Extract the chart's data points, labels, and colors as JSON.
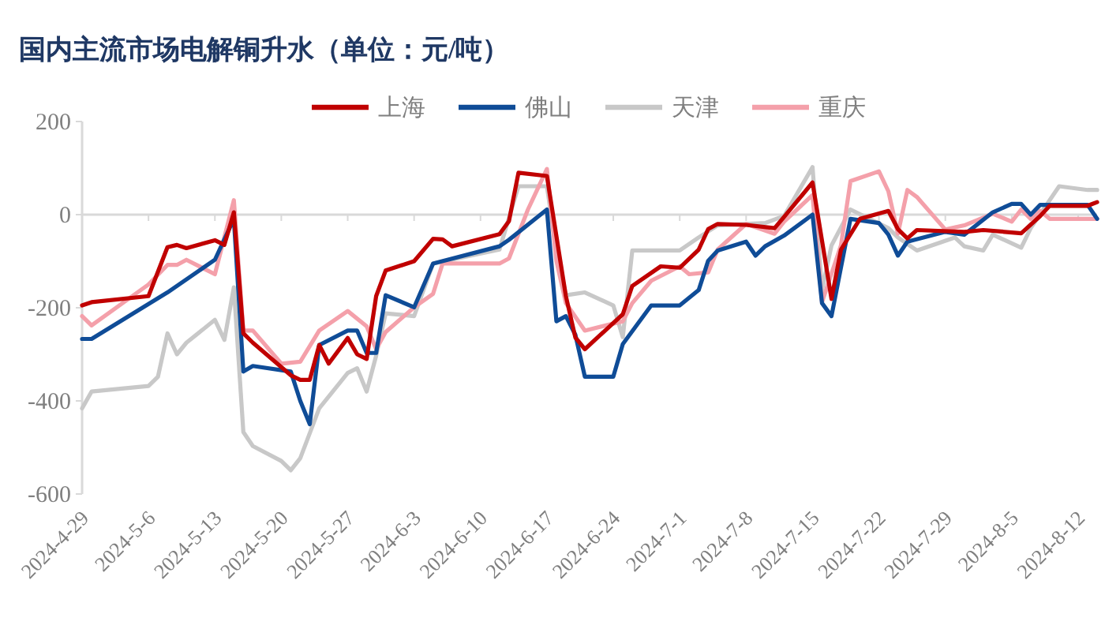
{
  "chart_data": {
    "type": "line",
    "title": "国内主流市场电解铜升水（单位：元/吨）",
    "legend": "top",
    "xlim": [
      "2024-04-29",
      "2024-08-14"
    ],
    "ylim": [
      -600,
      200
    ],
    "yticks": [
      -600,
      -400,
      -200,
      0,
      200
    ],
    "xticks": [
      {
        "value": "2024-04-29",
        "label": "2024-4-29"
      },
      {
        "value": "2024-05-06",
        "label": "2024-5-6"
      },
      {
        "value": "2024-05-13",
        "label": "2024-5-13"
      },
      {
        "value": "2024-05-20",
        "label": "2024-5-20"
      },
      {
        "value": "2024-05-27",
        "label": "2024-5-27"
      },
      {
        "value": "2024-06-03",
        "label": "2024-6-3"
      },
      {
        "value": "2024-06-10",
        "label": "2024-6-10"
      },
      {
        "value": "2024-06-17",
        "label": "2024-6-17"
      },
      {
        "value": "2024-06-24",
        "label": "2024-6-24"
      },
      {
        "value": "2024-07-01",
        "label": "2024-7-1"
      },
      {
        "value": "2024-07-08",
        "label": "2024-7-8"
      },
      {
        "value": "2024-07-15",
        "label": "2024-7-15"
      },
      {
        "value": "2024-07-22",
        "label": "2024-7-22"
      },
      {
        "value": "2024-07-29",
        "label": "2024-7-29"
      },
      {
        "value": "2024-08-05",
        "label": "2024-8-5"
      },
      {
        "value": "2024-08-12",
        "label": "2024-8-12"
      }
    ],
    "series": [
      {
        "name": "天津",
        "color": "#c8c8c8",
        "x": [
          "2024-04-29",
          "2024-04-30",
          "2024-05-06",
          "2024-05-07",
          "2024-05-08",
          "2024-05-09",
          "2024-05-10",
          "2024-05-13",
          "2024-05-14",
          "2024-05-15",
          "2024-05-16",
          "2024-05-17",
          "2024-05-20",
          "2024-05-21",
          "2024-05-22",
          "2024-05-24",
          "2024-05-27",
          "2024-05-28",
          "2024-05-29",
          "2024-05-30",
          "2024-05-31",
          "2024-06-03",
          "2024-06-05",
          "2024-06-12",
          "2024-06-14",
          "2024-06-17",
          "2024-06-18",
          "2024-06-19",
          "2024-06-21",
          "2024-06-24",
          "2024-06-25",
          "2024-06-26",
          "2024-07-01",
          "2024-07-03",
          "2024-07-05",
          "2024-07-10",
          "2024-07-12",
          "2024-07-15",
          "2024-07-16",
          "2024-07-17",
          "2024-07-19",
          "2024-07-23",
          "2024-07-24",
          "2024-07-26",
          "2024-07-30",
          "2024-07-31",
          "2024-08-02",
          "2024-08-03",
          "2024-08-06",
          "2024-08-07",
          "2024-08-10",
          "2024-08-13",
          "2024-08-14"
        ],
        "values": [
          -416,
          -380,
          -368,
          -348,
          -255,
          -300,
          -275,
          -226,
          -269,
          -156,
          -467,
          -497,
          -529,
          -549,
          -523,
          -416,
          -340,
          -330,
          -380,
          -303,
          -212,
          -218,
          -105,
          -75,
          61,
          61,
          -77,
          -173,
          -167,
          -195,
          -263,
          -77,
          -77,
          -49,
          -23,
          -18,
          -3,
          102,
          -162,
          -66,
          11,
          -29,
          -49,
          -77,
          -49,
          -68,
          -77,
          -43,
          -71,
          -29,
          61,
          53,
          53
        ]
      },
      {
        "name": "重庆",
        "color": "#f4a0aa",
        "x": [
          "2024-04-29",
          "2024-04-30",
          "2024-05-06",
          "2024-05-08",
          "2024-05-09",
          "2024-05-10",
          "2024-05-13",
          "2024-05-15",
          "2024-05-16",
          "2024-05-17",
          "2024-05-20",
          "2024-05-22",
          "2024-05-24",
          "2024-05-27",
          "2024-05-29",
          "2024-05-30",
          "2024-05-31",
          "2024-06-03",
          "2024-06-05",
          "2024-06-06",
          "2024-06-12",
          "2024-06-13",
          "2024-06-15",
          "2024-06-17",
          "2024-06-18",
          "2024-06-19",
          "2024-06-21",
          "2024-06-25",
          "2024-06-26",
          "2024-06-28",
          "2024-07-01",
          "2024-07-02",
          "2024-07-04",
          "2024-07-05",
          "2024-07-08",
          "2024-07-11",
          "2024-07-12",
          "2024-07-15",
          "2024-07-16",
          "2024-07-18",
          "2024-07-19",
          "2024-07-22",
          "2024-07-23",
          "2024-07-24",
          "2024-07-25",
          "2024-07-26",
          "2024-07-29",
          "2024-07-31",
          "2024-08-03",
          "2024-08-05",
          "2024-08-06",
          "2024-08-07",
          "2024-08-08",
          "2024-08-09",
          "2024-08-14"
        ],
        "values": [
          -218,
          -238,
          -150,
          -108,
          -108,
          -97,
          -128,
          31,
          -249,
          -249,
          -320,
          -316,
          -249,
          -207,
          -240,
          -289,
          -252,
          -199,
          -170,
          -105,
          -105,
          -94,
          11,
          98,
          -99,
          -190,
          -249,
          -229,
          -190,
          -142,
          -111,
          -128,
          -124,
          -75,
          -20,
          -41,
          -15,
          42,
          -188,
          -66,
          72,
          93,
          50,
          -41,
          53,
          38,
          -32,
          -23,
          2,
          -15,
          11,
          -9,
          8,
          -9,
          -9
        ]
      },
      {
        "name": "佛山",
        "color": "#0f4c97",
        "x": [
          "2024-04-29",
          "2024-04-30",
          "2024-05-08",
          "2024-05-13",
          "2024-05-15",
          "2024-05-16",
          "2024-05-17",
          "2024-05-21",
          "2024-05-22",
          "2024-05-23",
          "2024-05-24",
          "2024-05-27",
          "2024-05-28",
          "2024-05-29",
          "2024-05-30",
          "2024-05-31",
          "2024-06-03",
          "2024-06-05",
          "2024-06-12",
          "2024-06-13",
          "2024-06-17",
          "2024-06-18",
          "2024-06-19",
          "2024-06-20",
          "2024-06-21",
          "2024-06-24",
          "2024-06-25",
          "2024-06-28",
          "2024-07-01",
          "2024-07-03",
          "2024-07-04",
          "2024-07-05",
          "2024-07-08",
          "2024-07-09",
          "2024-07-10",
          "2024-07-12",
          "2024-07-15",
          "2024-07-16",
          "2024-07-17",
          "2024-07-19",
          "2024-07-22",
          "2024-07-23",
          "2024-07-24",
          "2024-07-25",
          "2024-07-29",
          "2024-07-31",
          "2024-08-03",
          "2024-08-05",
          "2024-08-06",
          "2024-08-07",
          "2024-08-08",
          "2024-08-13",
          "2024-08-14"
        ],
        "values": [
          -267,
          -267,
          -167,
          -97,
          -9,
          -337,
          -325,
          -337,
          -400,
          -450,
          -280,
          -249,
          -249,
          -297,
          -297,
          -173,
          -199,
          -105,
          -68,
          -54,
          11,
          -229,
          -218,
          -258,
          -348,
          -348,
          -278,
          -195,
          -195,
          -162,
          -99,
          -77,
          -58,
          -88,
          -68,
          -45,
          0,
          -190,
          -218,
          -9,
          -18,
          -43,
          -88,
          -58,
          -37,
          -43,
          5,
          23,
          23,
          0,
          21,
          21,
          -9
        ]
      },
      {
        "name": "上海",
        "color": "#c00000",
        "x": [
          "2024-04-29",
          "2024-04-30",
          "2024-05-06",
          "2024-05-08",
          "2024-05-09",
          "2024-05-10",
          "2024-05-13",
          "2024-05-14",
          "2024-05-15",
          "2024-05-16",
          "2024-05-17",
          "2024-05-21",
          "2024-05-22",
          "2024-05-23",
          "2024-05-24",
          "2024-05-25",
          "2024-05-27",
          "2024-05-28",
          "2024-05-29",
          "2024-05-30",
          "2024-05-31",
          "2024-06-03",
          "2024-06-05",
          "2024-06-06",
          "2024-06-07",
          "2024-06-12",
          "2024-06-13",
          "2024-06-14",
          "2024-06-17",
          "2024-06-19",
          "2024-06-20",
          "2024-06-21",
          "2024-06-25",
          "2024-06-26",
          "2024-06-29",
          "2024-07-01",
          "2024-07-03",
          "2024-07-04",
          "2024-07-05",
          "2024-07-08",
          "2024-07-11",
          "2024-07-12",
          "2024-07-15",
          "2024-07-17",
          "2024-07-18",
          "2024-07-20",
          "2024-07-23",
          "2024-07-24",
          "2024-07-25",
          "2024-07-26",
          "2024-07-31",
          "2024-08-02",
          "2024-08-06",
          "2024-08-08",
          "2024-08-09",
          "2024-08-13",
          "2024-08-14"
        ],
        "values": [
          -195,
          -188,
          -175,
          -70,
          -65,
          -72,
          -55,
          -65,
          5,
          -255,
          -275,
          -345,
          -355,
          -355,
          -280,
          -320,
          -265,
          -300,
          -310,
          -175,
          -120,
          -100,
          -52,
          -53,
          -68,
          -42,
          -14,
          90,
          83,
          -175,
          -264,
          -289,
          -214,
          -153,
          -111,
          -114,
          -75,
          -31,
          -20,
          -22,
          -29,
          -5,
          69,
          -181,
          -75,
          -9,
          8,
          -31,
          -51,
          -33,
          -37,
          -33,
          -40,
          -3,
          19,
          19,
          27
        ]
      }
    ]
  }
}
